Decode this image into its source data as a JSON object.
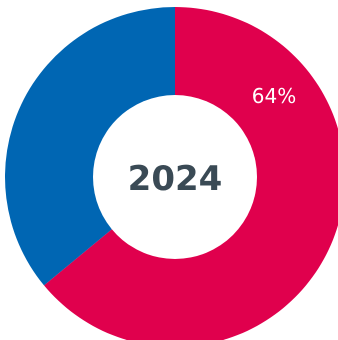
{
  "chart_data": {
    "type": "pie",
    "center_label": "2024",
    "slices": [
      {
        "value": 64,
        "label": "64%",
        "color": "#e0004d"
      },
      {
        "value": 36,
        "label": "",
        "color": "#0066b3"
      }
    ]
  }
}
